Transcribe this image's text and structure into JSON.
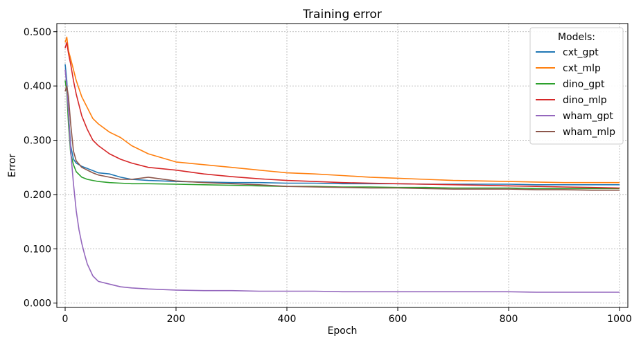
{
  "chart_data": {
    "type": "line",
    "title": "Training error",
    "xlabel": "Epoch",
    "ylabel": "Error",
    "xlim": [
      -15,
      1015
    ],
    "ylim": [
      -0.008,
      0.515
    ],
    "xticks": [
      0,
      200,
      400,
      600,
      800,
      1000
    ],
    "yticks": [
      0.0,
      0.1,
      0.2,
      0.3,
      0.4,
      0.5
    ],
    "xtick_labels": [
      "0",
      "200",
      "400",
      "600",
      "800",
      "1000"
    ],
    "ytick_labels": [
      "0.000",
      "0.100",
      "0.200",
      "0.300",
      "0.400",
      "0.500"
    ],
    "grid": true,
    "legend": {
      "title": "Models:",
      "placement": "top-right"
    },
    "series": [
      {
        "name": "cxt_gpt",
        "color": "#1f77b4",
        "x": [
          0,
          3,
          6,
          10,
          15,
          20,
          30,
          40,
          50,
          60,
          80,
          100,
          120,
          150,
          200,
          250,
          300,
          350,
          400,
          450,
          500,
          550,
          600,
          650,
          700,
          750,
          800,
          850,
          900,
          950,
          1000
        ],
        "y": [
          0.44,
          0.41,
          0.35,
          0.29,
          0.265,
          0.258,
          0.252,
          0.248,
          0.244,
          0.24,
          0.238,
          0.232,
          0.228,
          0.226,
          0.224,
          0.223,
          0.222,
          0.222,
          0.221,
          0.221,
          0.22,
          0.22,
          0.22,
          0.219,
          0.219,
          0.219,
          0.219,
          0.218,
          0.218,
          0.218,
          0.218
        ]
      },
      {
        "name": "cxt_mlp",
        "color": "#ff7f0e",
        "x": [
          0,
          3,
          6,
          10,
          15,
          20,
          30,
          40,
          50,
          60,
          80,
          100,
          120,
          150,
          200,
          250,
          300,
          350,
          400,
          450,
          500,
          550,
          600,
          650,
          700,
          750,
          800,
          850,
          900,
          950,
          1000
        ],
        "y": [
          0.48,
          0.49,
          0.465,
          0.45,
          0.43,
          0.41,
          0.38,
          0.36,
          0.34,
          0.33,
          0.315,
          0.305,
          0.29,
          0.275,
          0.26,
          0.255,
          0.25,
          0.245,
          0.24,
          0.238,
          0.235,
          0.232,
          0.23,
          0.228,
          0.226,
          0.225,
          0.224,
          0.223,
          0.222,
          0.222,
          0.222
        ]
      },
      {
        "name": "dino_gpt",
        "color": "#2ca02c",
        "x": [
          0,
          3,
          6,
          10,
          15,
          20,
          30,
          40,
          50,
          60,
          80,
          100,
          120,
          150,
          200,
          250,
          300,
          350,
          400,
          450,
          500,
          550,
          600,
          650,
          700,
          750,
          800,
          850,
          900,
          950,
          1000
        ],
        "y": [
          0.41,
          0.39,
          0.33,
          0.275,
          0.255,
          0.242,
          0.232,
          0.228,
          0.226,
          0.224,
          0.222,
          0.221,
          0.22,
          0.22,
          0.219,
          0.218,
          0.217,
          0.216,
          0.215,
          0.215,
          0.214,
          0.214,
          0.213,
          0.213,
          0.212,
          0.212,
          0.212,
          0.211,
          0.211,
          0.211,
          0.211
        ]
      },
      {
        "name": "dino_mlp",
        "color": "#d62728",
        "x": [
          0,
          3,
          6,
          10,
          15,
          20,
          30,
          40,
          50,
          60,
          80,
          100,
          120,
          150,
          200,
          250,
          300,
          350,
          400,
          450,
          500,
          550,
          600,
          650,
          700,
          750,
          800,
          850,
          900,
          950,
          1000
        ],
        "y": [
          0.47,
          0.48,
          0.46,
          0.44,
          0.41,
          0.385,
          0.345,
          0.32,
          0.3,
          0.29,
          0.275,
          0.265,
          0.258,
          0.25,
          0.245,
          0.238,
          0.233,
          0.229,
          0.226,
          0.224,
          0.222,
          0.221,
          0.22,
          0.219,
          0.218,
          0.217,
          0.216,
          0.215,
          0.214,
          0.213,
          0.212
        ]
      },
      {
        "name": "wham_gpt",
        "color": "#9467bd",
        "x": [
          0,
          3,
          6,
          10,
          15,
          20,
          25,
          30,
          35,
          40,
          50,
          60,
          80,
          100,
          120,
          150,
          200,
          250,
          300,
          350,
          400,
          450,
          500,
          550,
          600,
          650,
          700,
          750,
          800,
          850,
          900,
          950,
          1000
        ],
        "y": [
          0.43,
          0.4,
          0.35,
          0.28,
          0.22,
          0.17,
          0.135,
          0.11,
          0.09,
          0.072,
          0.05,
          0.04,
          0.035,
          0.03,
          0.028,
          0.026,
          0.024,
          0.023,
          0.023,
          0.022,
          0.022,
          0.022,
          0.021,
          0.021,
          0.021,
          0.021,
          0.021,
          0.021,
          0.021,
          0.02,
          0.02,
          0.02,
          0.02
        ]
      },
      {
        "name": "wham_mlp",
        "color": "#8c564b",
        "x": [
          0,
          3,
          6,
          10,
          15,
          20,
          30,
          40,
          50,
          60,
          80,
          100,
          120,
          150,
          200,
          250,
          300,
          350,
          400,
          450,
          500,
          550,
          600,
          650,
          700,
          750,
          800,
          850,
          900,
          950,
          1000
        ],
        "y": [
          0.39,
          0.4,
          0.38,
          0.33,
          0.28,
          0.262,
          0.25,
          0.245,
          0.24,
          0.236,
          0.232,
          0.228,
          0.228,
          0.232,
          0.225,
          0.222,
          0.22,
          0.218,
          0.215,
          0.214,
          0.213,
          0.212,
          0.212,
          0.211,
          0.21,
          0.21,
          0.21,
          0.209,
          0.209,
          0.208,
          0.208
        ]
      }
    ]
  }
}
